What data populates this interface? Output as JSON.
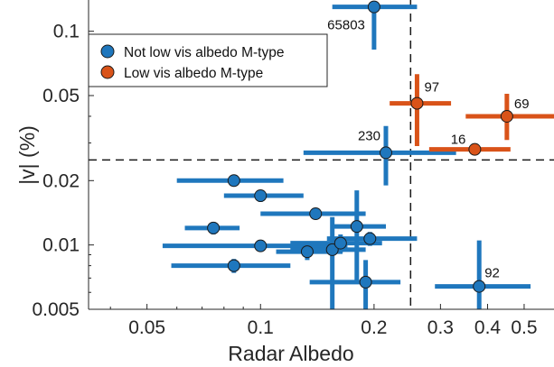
{
  "chart_data": {
    "type": "scatter",
    "xlabel": "Radar Albedo",
    "ylabel": "|v| (%)",
    "x_scale": "log",
    "y_scale": "log",
    "xlim": [
      0.035,
      0.6
    ],
    "ylim": [
      0.005,
      0.14
    ],
    "x_ticks": [
      {
        "value": 0.05,
        "label": "0.05"
      },
      {
        "value": 0.1,
        "label": "0.1"
      },
      {
        "value": 0.2,
        "label": "0.2"
      },
      {
        "value": 0.3,
        "label": "0.3"
      },
      {
        "value": 0.4,
        "label": "0.4"
      },
      {
        "value": 0.5,
        "label": "0.5"
      }
    ],
    "y_ticks": [
      {
        "value": 0.005,
        "label": "0.005"
      },
      {
        "value": 0.01,
        "label": "0.01"
      },
      {
        "value": 0.02,
        "label": "0.02"
      },
      {
        "value": 0.05,
        "label": "0.05"
      },
      {
        "value": 0.1,
        "label": "0.1"
      }
    ],
    "grid": false,
    "legend_position": "top-left",
    "threshold_lines": {
      "x": 0.25,
      "y": 0.025
    },
    "series": [
      {
        "name": "Not low vis albedo M-type",
        "color": "#1f77bd",
        "points": [
          {
            "label": "65803",
            "x": 0.2,
            "y": 0.13,
            "xerr": [
              0.155,
              0.26
            ],
            "yerr": [
              0.082,
              0.13
            ]
          },
          {
            "label": "230",
            "x": 0.215,
            "y": 0.027,
            "xerr": [
              0.13,
              0.33
            ],
            "yerr": [
              0.019,
              0.036
            ]
          },
          {
            "label": "92",
            "x": 0.38,
            "y": 0.0064,
            "xerr": [
              0.29,
              0.52
            ],
            "yerr": [
              0.0046,
              0.0105
            ]
          },
          {
            "label": "",
            "x": 0.085,
            "y": 0.02,
            "xerr": [
              0.06,
              0.115
            ],
            "yerr": [
              0.0193,
              0.0207
            ]
          },
          {
            "label": "",
            "x": 0.1,
            "y": 0.017,
            "xerr": [
              0.08,
              0.13
            ],
            "yerr": [
              0.0159,
              0.0181
            ]
          },
          {
            "label": "",
            "x": 0.075,
            "y": 0.012,
            "xerr": [
              0.063,
              0.088
            ],
            "yerr": [
              0.0112,
              0.0128
            ]
          },
          {
            "label": "",
            "x": 0.085,
            "y": 0.008,
            "xerr": [
              0.058,
              0.12
            ],
            "yerr": [
              0.0074,
              0.0086
            ]
          },
          {
            "label": "",
            "x": 0.1,
            "y": 0.0099,
            "xerr": [
              0.055,
              0.17
            ],
            "yerr": [
              0.0093,
              0.0105
            ]
          },
          {
            "label": "",
            "x": 0.14,
            "y": 0.014,
            "xerr": [
              0.1,
              0.19
            ],
            "yerr": [
              0.0133,
              0.0147
            ]
          },
          {
            "label": "",
            "x": 0.133,
            "y": 0.0093,
            "xerr": [
              0.11,
              0.165
            ],
            "yerr": [
              0.0085,
              0.0101
            ]
          },
          {
            "label": "",
            "x": 0.155,
            "y": 0.0095,
            "xerr": [
              0.12,
              0.19
            ],
            "yerr": [
              0.0045,
              0.0135
            ]
          },
          {
            "label": "",
            "x": 0.163,
            "y": 0.0102,
            "xerr": [
              0.12,
              0.21
            ],
            "yerr": [
              0.0092,
              0.0112
            ]
          },
          {
            "label": "",
            "x": 0.18,
            "y": 0.0122,
            "xerr": [
              0.155,
              0.215
            ],
            "yerr": [
              0.0068,
              0.018
            ]
          },
          {
            "label": "",
            "x": 0.195,
            "y": 0.0107,
            "xerr": [
              0.15,
              0.26
            ],
            "yerr": [
              0.0099,
              0.0115
            ]
          },
          {
            "label": "",
            "x": 0.19,
            "y": 0.0067,
            "xerr": [
              0.135,
              0.235
            ],
            "yerr": [
              0.0045,
              0.0085
            ]
          }
        ]
      },
      {
        "name": "Low vis albedo M-type",
        "color": "#d95319",
        "points": [
          {
            "label": "97",
            "x": 0.26,
            "y": 0.046,
            "xerr": [
              0.22,
              0.32
            ],
            "yerr": [
              0.029,
              0.063
            ]
          },
          {
            "label": "69",
            "x": 0.45,
            "y": 0.04,
            "xerr": [
              0.35,
              0.6
            ],
            "yerr": [
              0.031,
              0.051
            ]
          },
          {
            "label": "16",
            "x": 0.37,
            "y": 0.028,
            "xerr": [
              0.28,
              0.46
            ],
            "yerr": [
              0.0273,
              0.0287
            ]
          }
        ]
      }
    ]
  }
}
